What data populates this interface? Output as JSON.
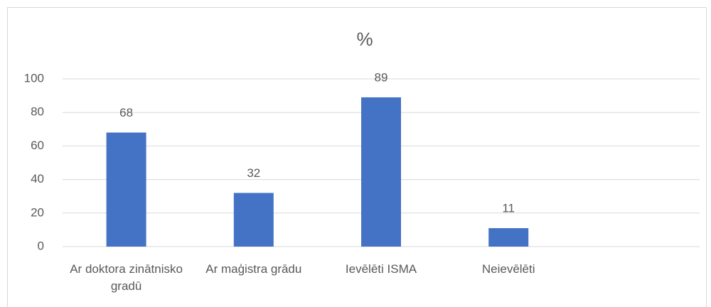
{
  "chart_data": {
    "type": "bar",
    "title": "%",
    "categories": [
      "Ar doktora zinātnisko gradū",
      "Ar maģistra grādu",
      "Ievēlēti ISMA",
      "Neievēlēti",
      null
    ],
    "values": [
      68,
      32,
      89,
      11,
      null
    ],
    "color": "#4472c4",
    "ylim": [
      0,
      100
    ],
    "yticks": [
      0,
      20,
      40,
      60,
      80,
      100
    ],
    "grid": true
  }
}
